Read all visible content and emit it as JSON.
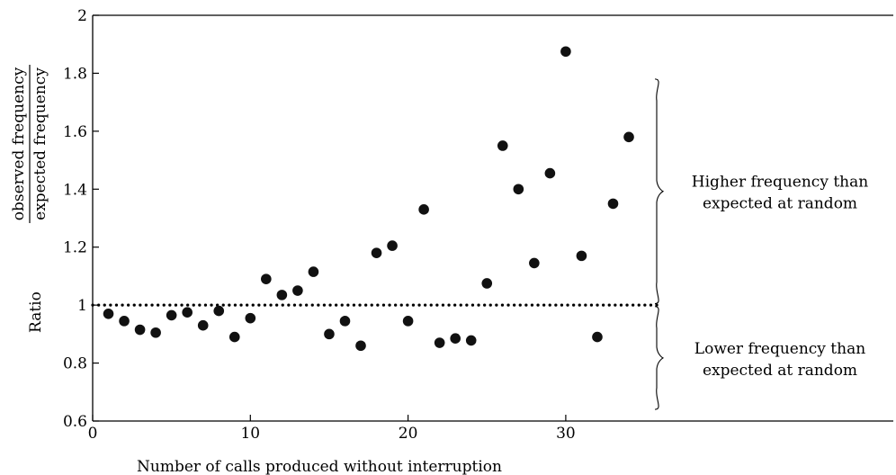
{
  "chart_data": {
    "type": "scatter",
    "title": "",
    "xlabel": "Number of calls produced without  interruption",
    "ylabel": {
      "prefix": "Ratio",
      "numerator": "observed frequency",
      "denominator": "expected frequency"
    },
    "xlim": [
      0,
      36
    ],
    "ylim": [
      0.6,
      2
    ],
    "x_ticks": [
      0,
      10,
      20,
      30
    ],
    "x_tick_labels": [
      "0",
      "10",
      "20",
      "30"
    ],
    "y_ticks": [
      0.6,
      0.8,
      1,
      1.2,
      1.4,
      1.6,
      1.8,
      2
    ],
    "y_tick_labels": [
      "0.6",
      "0.8",
      "1",
      "1.2",
      "1.4",
      "1.6",
      "1.8",
      "2"
    ],
    "grid": false,
    "reference_line": {
      "y": 1,
      "style": "dotted"
    },
    "series": [
      {
        "points": [
          {
            "x": 1,
            "y": 0.97
          },
          {
            "x": 2,
            "y": 0.945
          },
          {
            "x": 3,
            "y": 0.915
          },
          {
            "x": 4,
            "y": 0.905
          },
          {
            "x": 5,
            "y": 0.965
          },
          {
            "x": 6,
            "y": 0.975
          },
          {
            "x": 7,
            "y": 0.93
          },
          {
            "x": 8,
            "y": 0.98
          },
          {
            "x": 9,
            "y": 0.89
          },
          {
            "x": 10,
            "y": 0.955
          },
          {
            "x": 11,
            "y": 1.09
          },
          {
            "x": 12,
            "y": 1.035
          },
          {
            "x": 13,
            "y": 1.05
          },
          {
            "x": 14,
            "y": 1.115
          },
          {
            "x": 15,
            "y": 0.9
          },
          {
            "x": 16,
            "y": 0.945
          },
          {
            "x": 17,
            "y": 0.86
          },
          {
            "x": 18,
            "y": 1.18
          },
          {
            "x": 19,
            "y": 1.205
          },
          {
            "x": 20,
            "y": 0.945
          },
          {
            "x": 21,
            "y": 1.33
          },
          {
            "x": 22,
            "y": 0.87
          },
          {
            "x": 23,
            "y": 0.885
          },
          {
            "x": 24,
            "y": 0.878
          },
          {
            "x": 25,
            "y": 1.075
          },
          {
            "x": 26,
            "y": 1.55
          },
          {
            "x": 27,
            "y": 1.4
          },
          {
            "x": 28,
            "y": 1.145
          },
          {
            "x": 29,
            "y": 1.455
          },
          {
            "x": 30,
            "y": 1.875
          },
          {
            "x": 31,
            "y": 1.17
          },
          {
            "x": 32,
            "y": 0.89
          },
          {
            "x": 33,
            "y": 1.35
          },
          {
            "x": 34,
            "y": 1.58
          }
        ]
      }
    ],
    "annotations": [
      {
        "key": "higher",
        "lines": [
          "Higher frequency than",
          "expected at random"
        ],
        "y_range": [
          1.005,
          1.78
        ]
      },
      {
        "key": "lower",
        "lines": [
          "Lower frequency than",
          "expected at random"
        ],
        "y_range": [
          0.64,
          0.995
        ]
      }
    ]
  }
}
